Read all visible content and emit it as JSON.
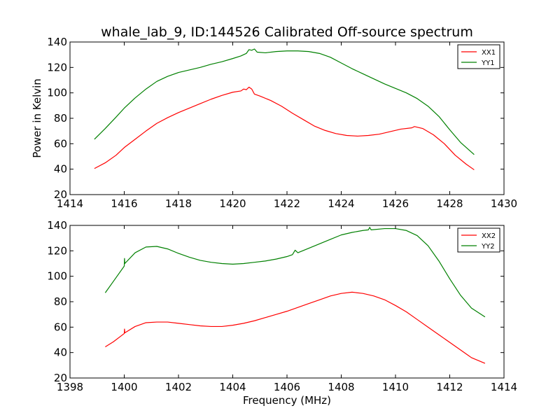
{
  "chart_data": [
    {
      "type": "line",
      "title": "whale_lab_9, ID:144526 Calibrated Off-source spectrum",
      "xlabel": "",
      "ylabel": "Power in Kelvin",
      "xlim": [
        1414,
        1430
      ],
      "ylim": [
        20,
        140
      ],
      "xticks": [
        1414,
        1416,
        1418,
        1420,
        1422,
        1424,
        1426,
        1428,
        1430
      ],
      "yticks": [
        20,
        40,
        60,
        80,
        100,
        120,
        140
      ],
      "legend_position": "top-right",
      "grid": false,
      "series": [
        {
          "name": "XX1",
          "color": "#ff0000",
          "points": [
            [
              1414.9,
              40.5
            ],
            [
              1415.3,
              45
            ],
            [
              1415.7,
              51
            ],
            [
              1416.0,
              57
            ],
            [
              1416.4,
              63.5
            ],
            [
              1416.8,
              70
            ],
            [
              1417.2,
              76
            ],
            [
              1417.6,
              80.5
            ],
            [
              1418.0,
              84.5
            ],
            [
              1418.4,
              88
            ],
            [
              1418.8,
              91.5
            ],
            [
              1419.2,
              95
            ],
            [
              1419.6,
              98
            ],
            [
              1420.0,
              100.5
            ],
            [
              1420.3,
              101.5
            ],
            [
              1420.4,
              103
            ],
            [
              1420.5,
              102.5
            ],
            [
              1420.6,
              104.5
            ],
            [
              1420.7,
              103
            ],
            [
              1420.8,
              99
            ],
            [
              1421.0,
              97.5
            ],
            [
              1421.4,
              94
            ],
            [
              1421.8,
              89.5
            ],
            [
              1422.2,
              84
            ],
            [
              1422.6,
              79
            ],
            [
              1423.0,
              74
            ],
            [
              1423.4,
              70.5
            ],
            [
              1423.8,
              68
            ],
            [
              1424.2,
              66.5
            ],
            [
              1424.6,
              66
            ],
            [
              1425.0,
              66.5
            ],
            [
              1425.4,
              67.5
            ],
            [
              1425.8,
              69.5
            ],
            [
              1426.2,
              71.5
            ],
            [
              1426.6,
              72.5
            ],
            [
              1426.7,
              73.5
            ],
            [
              1427.0,
              72
            ],
            [
              1427.4,
              67
            ],
            [
              1427.8,
              60
            ],
            [
              1428.2,
              51
            ],
            [
              1428.6,
              44
            ],
            [
              1428.9,
              39.5
            ]
          ]
        },
        {
          "name": "YY1",
          "color": "#008000",
          "points": [
            [
              1414.9,
              63.5
            ],
            [
              1415.3,
              72
            ],
            [
              1415.7,
              81
            ],
            [
              1416.0,
              88
            ],
            [
              1416.4,
              96
            ],
            [
              1416.8,
              103
            ],
            [
              1417.2,
              109
            ],
            [
              1417.6,
              113
            ],
            [
              1418.0,
              116
            ],
            [
              1418.4,
              118
            ],
            [
              1418.8,
              120
            ],
            [
              1419.2,
              122.5
            ],
            [
              1419.6,
              124.5
            ],
            [
              1420.0,
              127
            ],
            [
              1420.3,
              129
            ],
            [
              1420.5,
              131
            ],
            [
              1420.6,
              134
            ],
            [
              1420.7,
              133.5
            ],
            [
              1420.8,
              134.5
            ],
            [
              1420.9,
              132
            ],
            [
              1421.2,
              131.5
            ],
            [
              1421.6,
              132.5
            ],
            [
              1422.0,
              133
            ],
            [
              1422.4,
              133
            ],
            [
              1422.8,
              132.5
            ],
            [
              1423.2,
              131
            ],
            [
              1423.6,
              128
            ],
            [
              1424.0,
              123.5
            ],
            [
              1424.4,
              119
            ],
            [
              1424.8,
              115
            ],
            [
              1425.2,
              111
            ],
            [
              1425.6,
              107
            ],
            [
              1426.0,
              103.5
            ],
            [
              1426.4,
              100
            ],
            [
              1426.8,
              95.5
            ],
            [
              1427.2,
              89.5
            ],
            [
              1427.6,
              81.5
            ],
            [
              1428.0,
              71
            ],
            [
              1428.4,
              61
            ],
            [
              1428.9,
              51.5
            ]
          ]
        }
      ]
    },
    {
      "type": "line",
      "title": "",
      "xlabel": "Frequency (MHz)",
      "ylabel": "",
      "xlim": [
        1398,
        1414
      ],
      "ylim": [
        20,
        140
      ],
      "xticks": [
        1398,
        1400,
        1402,
        1404,
        1406,
        1408,
        1410,
        1412,
        1414
      ],
      "yticks": [
        20,
        40,
        60,
        80,
        100,
        120,
        140
      ],
      "legend_position": "top-right",
      "grid": false,
      "series": [
        {
          "name": "XX2",
          "color": "#ff0000",
          "points": [
            [
              1399.3,
              44.5
            ],
            [
              1399.6,
              48.5
            ],
            [
              1400.0,
              55
            ],
            [
              1400.01,
              58.5
            ],
            [
              1400.02,
              55.5
            ],
            [
              1400.4,
              60.5
            ],
            [
              1400.8,
              63.5
            ],
            [
              1401.2,
              64
            ],
            [
              1401.6,
              64
            ],
            [
              1402.0,
              63
            ],
            [
              1402.4,
              62
            ],
            [
              1402.8,
              61
            ],
            [
              1403.2,
              60.5
            ],
            [
              1403.6,
              60.5
            ],
            [
              1404.0,
              61.5
            ],
            [
              1404.4,
              63
            ],
            [
              1404.8,
              65
            ],
            [
              1405.2,
              67.5
            ],
            [
              1405.6,
              70
            ],
            [
              1406.0,
              72.5
            ],
            [
              1406.4,
              75.5
            ],
            [
              1406.8,
              78.5
            ],
            [
              1407.2,
              81.5
            ],
            [
              1407.6,
              84.5
            ],
            [
              1408.0,
              86.5
            ],
            [
              1408.4,
              87.5
            ],
            [
              1408.8,
              86.5
            ],
            [
              1409.2,
              84.5
            ],
            [
              1409.6,
              81.5
            ],
            [
              1410.0,
              77
            ],
            [
              1410.4,
              72
            ],
            [
              1410.8,
              66
            ],
            [
              1411.2,
              60
            ],
            [
              1411.6,
              54
            ],
            [
              1412.0,
              48
            ],
            [
              1412.4,
              42
            ],
            [
              1412.8,
              36
            ],
            [
              1413.3,
              31.5
            ]
          ]
        },
        {
          "name": "YY2",
          "color": "#008000",
          "points": [
            [
              1399.3,
              87
            ],
            [
              1399.6,
              96
            ],
            [
              1400.0,
              108
            ],
            [
              1400.01,
              114
            ],
            [
              1400.02,
              110
            ],
            [
              1400.4,
              118.5
            ],
            [
              1400.8,
              123
            ],
            [
              1401.2,
              123.5
            ],
            [
              1401.6,
              121.5
            ],
            [
              1402.0,
              118
            ],
            [
              1402.4,
              115
            ],
            [
              1402.8,
              112.5
            ],
            [
              1403.2,
              111
            ],
            [
              1403.6,
              110
            ],
            [
              1404.0,
              109.5
            ],
            [
              1404.4,
              110
            ],
            [
              1404.8,
              111
            ],
            [
              1405.2,
              112
            ],
            [
              1405.6,
              113.5
            ],
            [
              1406.0,
              115.5
            ],
            [
              1406.2,
              117
            ],
            [
              1406.3,
              120.5
            ],
            [
              1406.4,
              118.5
            ],
            [
              1406.8,
              122
            ],
            [
              1407.2,
              125.5
            ],
            [
              1407.6,
              129
            ],
            [
              1408.0,
              132.5
            ],
            [
              1408.4,
              134.5
            ],
            [
              1408.8,
              136
            ],
            [
              1409.0,
              136.5
            ],
            [
              1409.05,
              138.5
            ],
            [
              1409.1,
              136.5
            ],
            [
              1409.6,
              137.5
            ],
            [
              1410.0,
              137.5
            ],
            [
              1410.4,
              136
            ],
            [
              1410.8,
              132
            ],
            [
              1411.2,
              124
            ],
            [
              1411.6,
              112
            ],
            [
              1412.0,
              98
            ],
            [
              1412.4,
              85
            ],
            [
              1412.8,
              75
            ],
            [
              1413.3,
              68
            ]
          ]
        }
      ]
    }
  ]
}
